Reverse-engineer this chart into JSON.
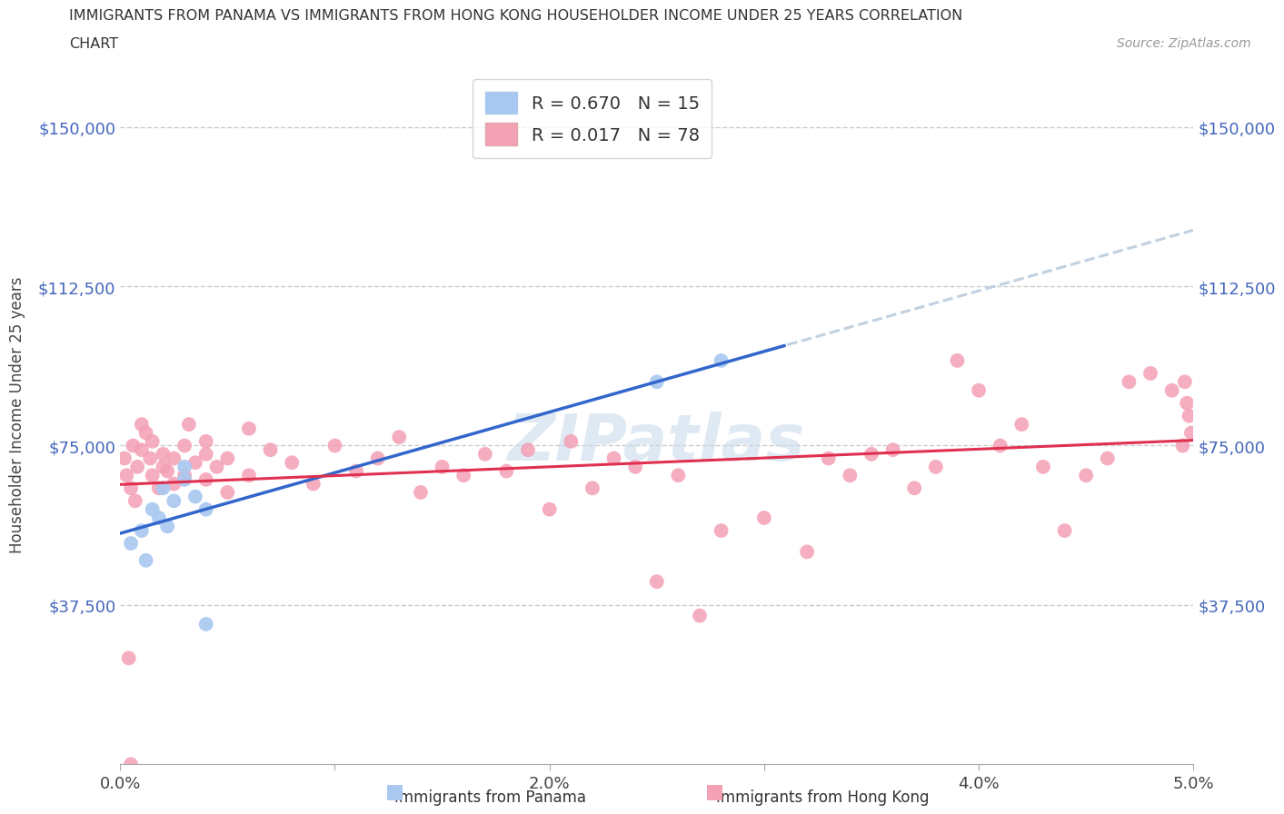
{
  "title_line1": "IMMIGRANTS FROM PANAMA VS IMMIGRANTS FROM HONG KONG HOUSEHOLDER INCOME UNDER 25 YEARS CORRELATION",
  "title_line2": "CHART",
  "source": "Source: ZipAtlas.com",
  "ylabel": "Householder Income Under 25 years",
  "xlim": [
    0.0,
    0.05
  ],
  "ylim": [
    0,
    165000
  ],
  "yticks": [
    0,
    37500,
    75000,
    112500,
    150000
  ],
  "ytick_labels": [
    "",
    "$37,500",
    "$75,000",
    "$112,500",
    "$150,000"
  ],
  "xticks": [
    0.0,
    0.01,
    0.02,
    0.03,
    0.04,
    0.05
  ],
  "xtick_labels": [
    "0.0%",
    "",
    "2.0%",
    "",
    "4.0%",
    "5.0%"
  ],
  "panama_color": "#a8c8f0",
  "panama_edge": "#5599dd",
  "hk_color": "#f4a0b5",
  "hk_edge": "#e06080",
  "trend_panama_color": "#3366cc",
  "trend_hk_color": "#e03050",
  "trend_ext_color": "#bbccdd",
  "panama_R": 0.67,
  "panama_N": 15,
  "hk_R": 0.017,
  "hk_N": 78,
  "watermark": "ZIPatlas",
  "background_color": "#ffffff",
  "panama_x": [
    0.0005,
    0.001,
    0.0012,
    0.0015,
    0.0018,
    0.002,
    0.0022,
    0.0025,
    0.003,
    0.003,
    0.0035,
    0.004,
    0.004,
    0.025,
    0.028
  ],
  "panama_y": [
    52000,
    55000,
    48000,
    60000,
    58000,
    65000,
    56000,
    62000,
    70000,
    67000,
    63000,
    60000,
    33000,
    90000,
    95000
  ],
  "hk_x": [
    0.0002,
    0.0003,
    0.0005,
    0.0006,
    0.0007,
    0.0008,
    0.001,
    0.001,
    0.0012,
    0.0014,
    0.0015,
    0.0015,
    0.0018,
    0.002,
    0.002,
    0.0022,
    0.0025,
    0.0025,
    0.003,
    0.003,
    0.0032,
    0.0035,
    0.004,
    0.004,
    0.004,
    0.0045,
    0.005,
    0.005,
    0.006,
    0.006,
    0.007,
    0.008,
    0.009,
    0.01,
    0.011,
    0.012,
    0.013,
    0.014,
    0.015,
    0.016,
    0.017,
    0.018,
    0.019,
    0.02,
    0.021,
    0.022,
    0.023,
    0.024,
    0.025,
    0.026,
    0.027,
    0.028,
    0.03,
    0.032,
    0.033,
    0.034,
    0.035,
    0.036,
    0.037,
    0.038,
    0.039,
    0.04,
    0.041,
    0.042,
    0.043,
    0.044,
    0.045,
    0.046,
    0.047,
    0.048,
    0.049,
    0.0495,
    0.0498,
    0.0499,
    0.0497,
    0.0496,
    0.0005,
    0.0004
  ],
  "hk_y": [
    72000,
    68000,
    65000,
    75000,
    62000,
    70000,
    80000,
    74000,
    78000,
    72000,
    68000,
    76000,
    65000,
    70000,
    73000,
    69000,
    72000,
    66000,
    75000,
    68000,
    80000,
    71000,
    73000,
    67000,
    76000,
    70000,
    72000,
    64000,
    79000,
    68000,
    74000,
    71000,
    66000,
    75000,
    69000,
    72000,
    77000,
    64000,
    70000,
    68000,
    73000,
    69000,
    74000,
    60000,
    76000,
    65000,
    72000,
    70000,
    43000,
    68000,
    35000,
    55000,
    58000,
    50000,
    72000,
    68000,
    73000,
    74000,
    65000,
    70000,
    95000,
    88000,
    75000,
    80000,
    70000,
    55000,
    68000,
    72000,
    90000,
    92000,
    88000,
    75000,
    82000,
    78000,
    85000,
    90000,
    0,
    25000
  ]
}
